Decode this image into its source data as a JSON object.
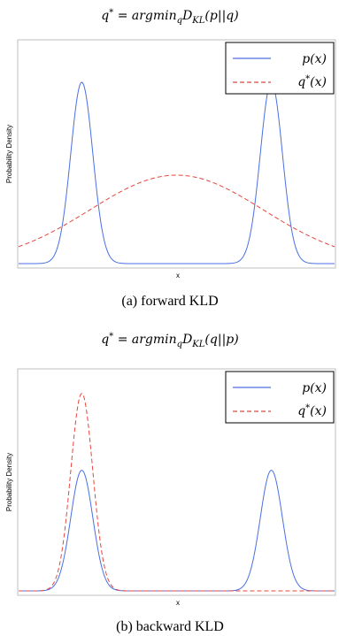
{
  "figure": {
    "panels": [
      {
        "title": "q* = argmin_q D_KL(p||q)",
        "caption": "(a) forward KLD",
        "xlabel": "x",
        "ylabel": "Probability Density",
        "legend": [
          "p(x)",
          "q*(x)"
        ]
      },
      {
        "title": "q* = argmin_q D_KL(q||p)",
        "caption": "(b) backward KLD",
        "xlabel": "x",
        "ylabel": "Probability Density",
        "legend": [
          "p(x)",
          "q*(x)"
        ]
      }
    ]
  },
  "colors": {
    "p": "#4a6fe3",
    "q": "#e8453c"
  },
  "chart_data": [
    {
      "type": "line",
      "title": "q* = argmin_q D_KL(p||q)",
      "xlabel": "x",
      "ylabel": "Probability Density",
      "legend_position": "top-right",
      "grid": false,
      "x_range": [
        -1,
        1
      ],
      "y_range": [
        0,
        1
      ],
      "series": [
        {
          "name": "p(x)",
          "style": "solid",
          "color": "#4a6fe3",
          "components": [
            {
              "mean": -0.6,
              "sd": 0.07,
              "peak": 0.82
            },
            {
              "mean": 0.6,
              "sd": 0.07,
              "peak": 0.82
            }
          ]
        },
        {
          "name": "q*(x)",
          "style": "dashed",
          "color": "#e8453c",
          "components": [
            {
              "mean": 0.0,
              "sd": 0.55,
              "peak": 0.4
            }
          ]
        }
      ]
    },
    {
      "type": "line",
      "title": "q* = argmin_q D_KL(q||p)",
      "xlabel": "x",
      "ylabel": "Probability Density",
      "legend_position": "top-right",
      "grid": false,
      "x_range": [
        -1,
        1
      ],
      "y_range": [
        0,
        1
      ],
      "series": [
        {
          "name": "p(x)",
          "style": "solid",
          "color": "#4a6fe3",
          "components": [
            {
              "mean": -0.6,
              "sd": 0.07,
              "peak": 0.55
            },
            {
              "mean": 0.6,
              "sd": 0.07,
              "peak": 0.55
            }
          ]
        },
        {
          "name": "q*(x)",
          "style": "dashed",
          "color": "#e8453c",
          "components": [
            {
              "mean": -0.6,
              "sd": 0.07,
              "peak": 0.9
            }
          ]
        }
      ]
    }
  ]
}
